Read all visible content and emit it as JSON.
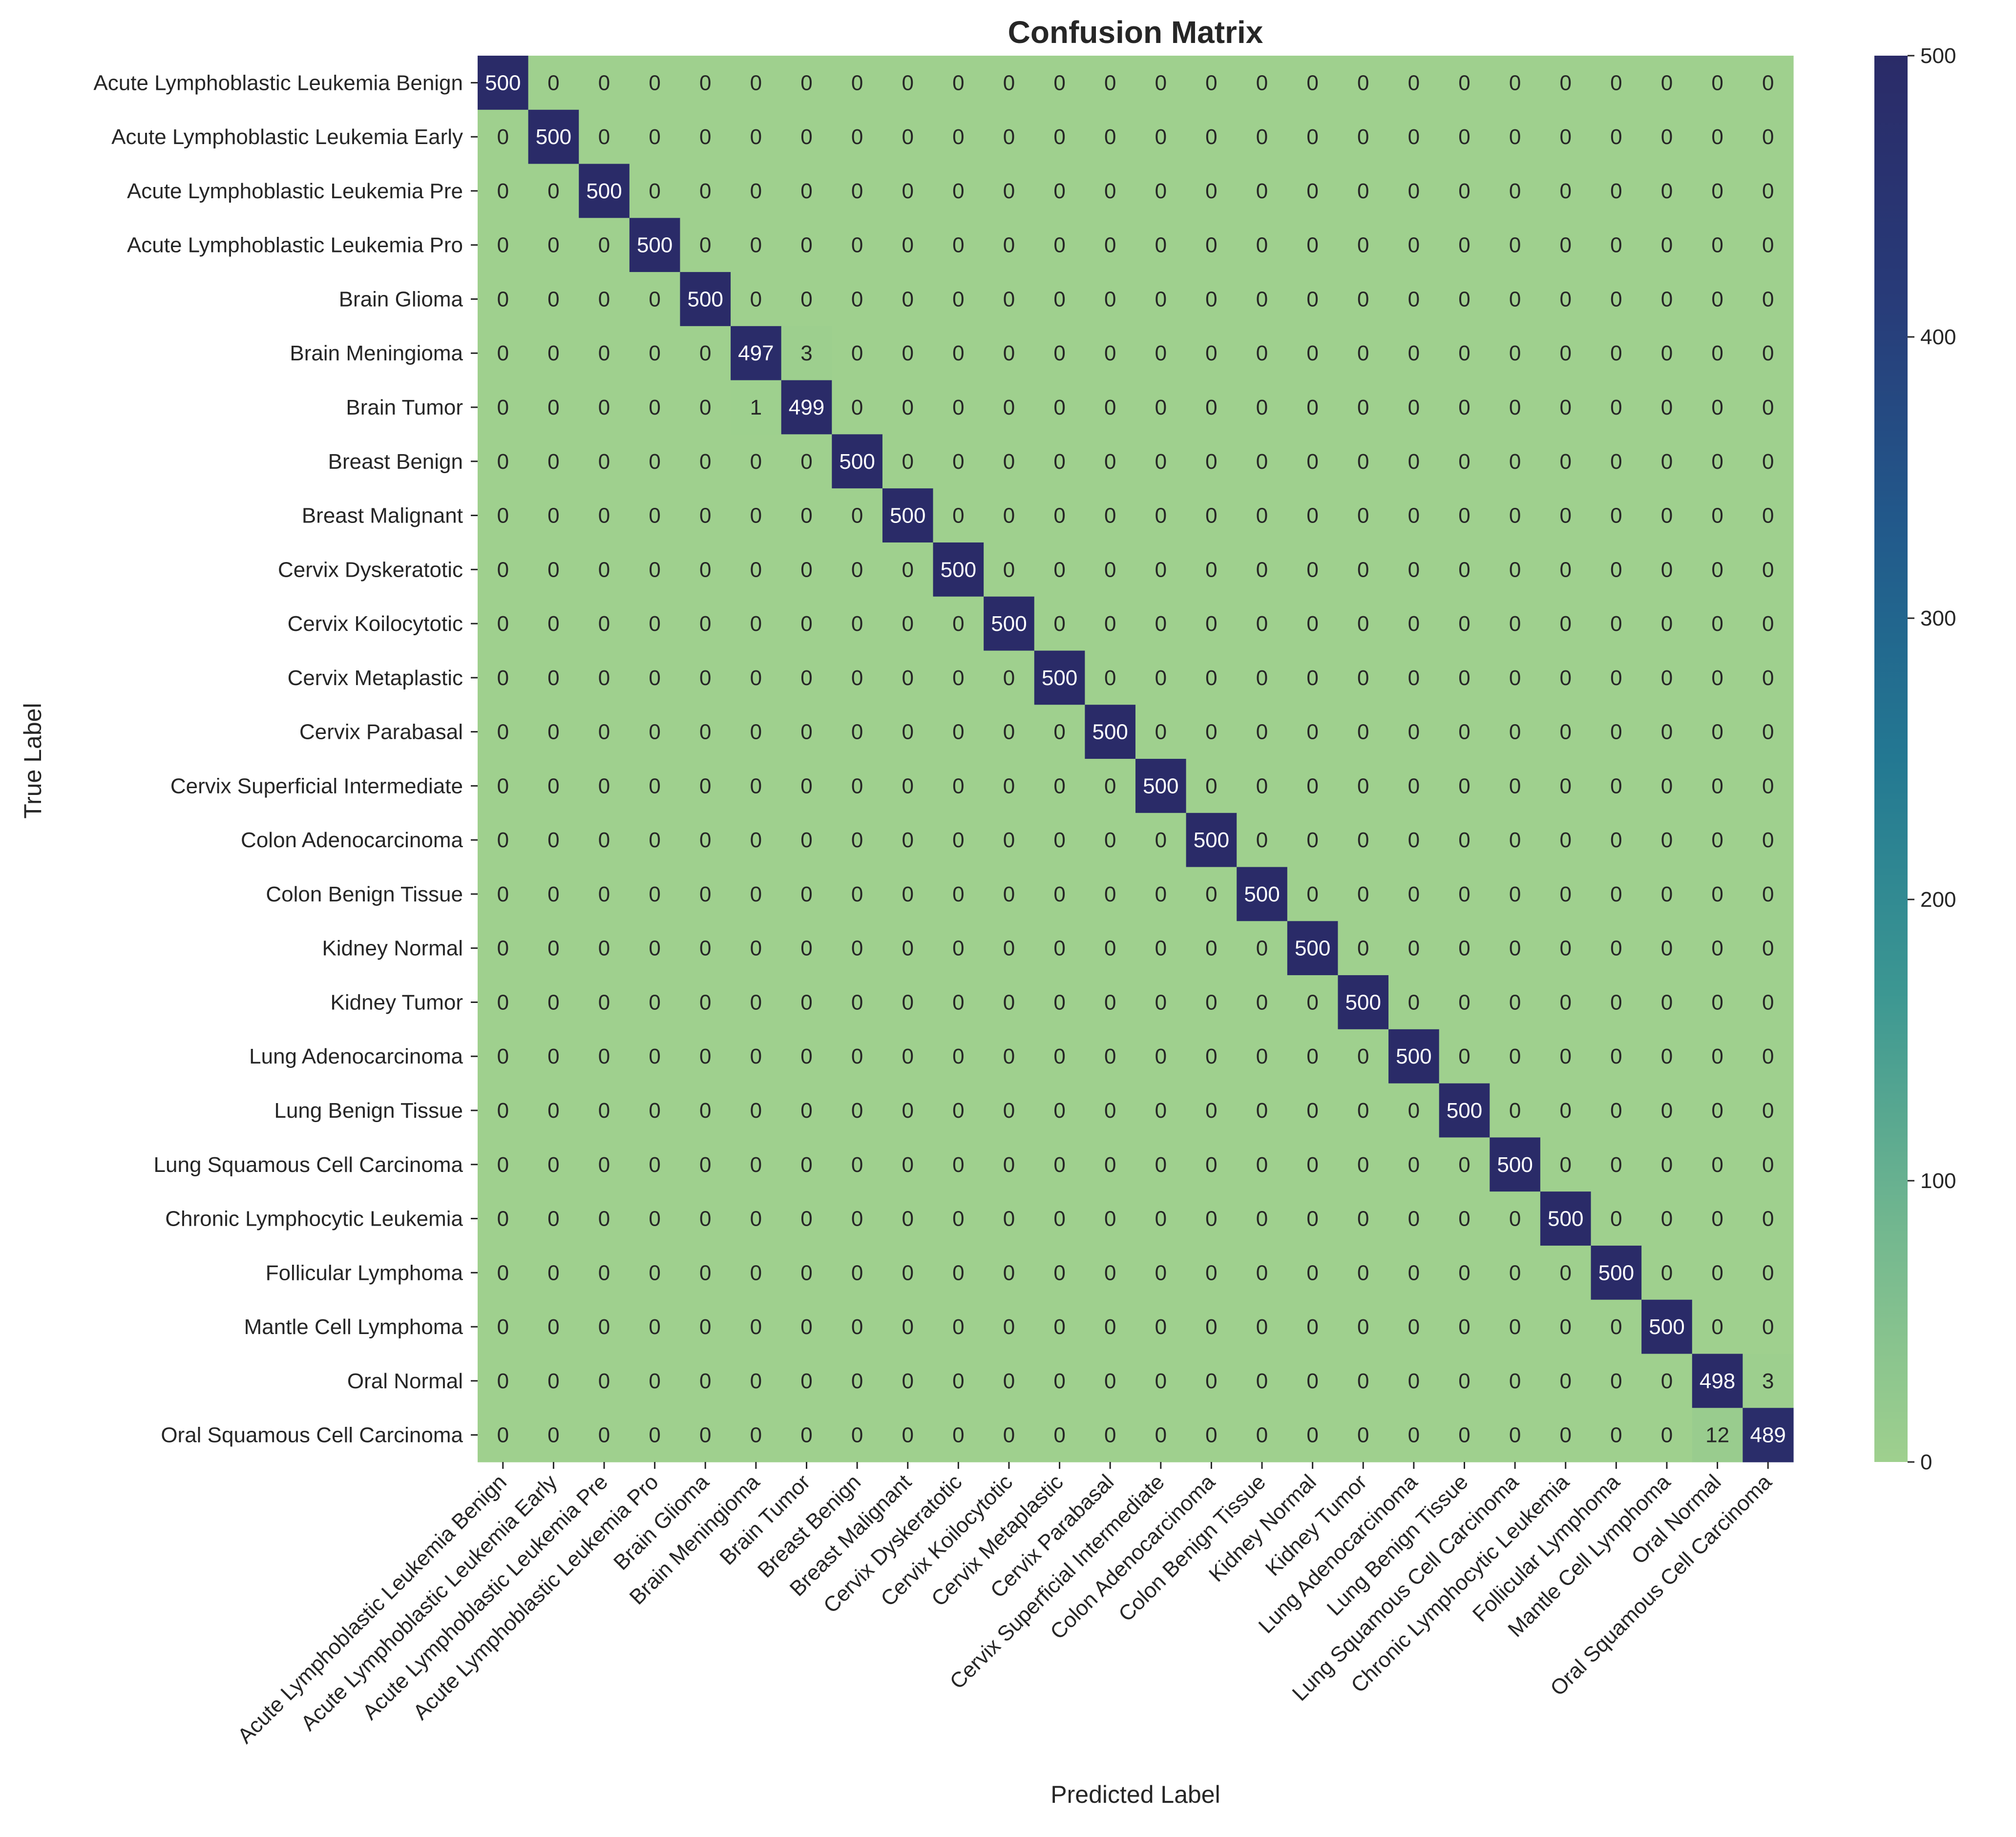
{
  "chart_data": {
    "type": "heatmap",
    "title": "Confusion Matrix",
    "xlabel": "Predicted Label",
    "ylabel": "True Label",
    "categories": [
      "Acute Lymphoblastic Leukemia Benign",
      "Acute Lymphoblastic Leukemia Early",
      "Acute Lymphoblastic Leukemia Pre",
      "Acute Lymphoblastic Leukemia Pro",
      "Brain Glioma",
      "Brain Meningioma",
      "Brain Tumor",
      "Breast Benign",
      "Breast Malignant",
      "Cervix Dyskeratotic",
      "Cervix Koilocytotic",
      "Cervix Metaplastic",
      "Cervix Parabasal",
      "Cervix Superficial Intermediate",
      "Colon Adenocarcinoma",
      "Colon Benign Tissue",
      "Kidney Normal",
      "Kidney Tumor",
      "Lung Adenocarcinoma",
      "Lung Benign Tissue",
      "Lung Squamous Cell Carcinoma",
      "Chronic Lymphocytic Leukemia",
      "Follicular Lymphoma",
      "Mantle Cell Lymphoma",
      "Oral Normal",
      "Oral Squamous Cell Carcinoma"
    ],
    "matrix": [
      [
        500,
        0,
        0,
        0,
        0,
        0,
        0,
        0,
        0,
        0,
        0,
        0,
        0,
        0,
        0,
        0,
        0,
        0,
        0,
        0,
        0,
        0,
        0,
        0,
        0,
        0
      ],
      [
        0,
        500,
        0,
        0,
        0,
        0,
        0,
        0,
        0,
        0,
        0,
        0,
        0,
        0,
        0,
        0,
        0,
        0,
        0,
        0,
        0,
        0,
        0,
        0,
        0,
        0
      ],
      [
        0,
        0,
        500,
        0,
        0,
        0,
        0,
        0,
        0,
        0,
        0,
        0,
        0,
        0,
        0,
        0,
        0,
        0,
        0,
        0,
        0,
        0,
        0,
        0,
        0,
        0
      ],
      [
        0,
        0,
        0,
        500,
        0,
        0,
        0,
        0,
        0,
        0,
        0,
        0,
        0,
        0,
        0,
        0,
        0,
        0,
        0,
        0,
        0,
        0,
        0,
        0,
        0,
        0
      ],
      [
        0,
        0,
        0,
        0,
        500,
        0,
        0,
        0,
        0,
        0,
        0,
        0,
        0,
        0,
        0,
        0,
        0,
        0,
        0,
        0,
        0,
        0,
        0,
        0,
        0,
        0
      ],
      [
        0,
        0,
        0,
        0,
        0,
        497,
        3,
        0,
        0,
        0,
        0,
        0,
        0,
        0,
        0,
        0,
        0,
        0,
        0,
        0,
        0,
        0,
        0,
        0,
        0,
        0
      ],
      [
        0,
        0,
        0,
        0,
        0,
        1,
        499,
        0,
        0,
        0,
        0,
        0,
        0,
        0,
        0,
        0,
        0,
        0,
        0,
        0,
        0,
        0,
        0,
        0,
        0,
        0
      ],
      [
        0,
        0,
        0,
        0,
        0,
        0,
        0,
        500,
        0,
        0,
        0,
        0,
        0,
        0,
        0,
        0,
        0,
        0,
        0,
        0,
        0,
        0,
        0,
        0,
        0,
        0
      ],
      [
        0,
        0,
        0,
        0,
        0,
        0,
        0,
        0,
        500,
        0,
        0,
        0,
        0,
        0,
        0,
        0,
        0,
        0,
        0,
        0,
        0,
        0,
        0,
        0,
        0,
        0
      ],
      [
        0,
        0,
        0,
        0,
        0,
        0,
        0,
        0,
        0,
        500,
        0,
        0,
        0,
        0,
        0,
        0,
        0,
        0,
        0,
        0,
        0,
        0,
        0,
        0,
        0,
        0
      ],
      [
        0,
        0,
        0,
        0,
        0,
        0,
        0,
        0,
        0,
        0,
        500,
        0,
        0,
        0,
        0,
        0,
        0,
        0,
        0,
        0,
        0,
        0,
        0,
        0,
        0,
        0
      ],
      [
        0,
        0,
        0,
        0,
        0,
        0,
        0,
        0,
        0,
        0,
        0,
        500,
        0,
        0,
        0,
        0,
        0,
        0,
        0,
        0,
        0,
        0,
        0,
        0,
        0,
        0
      ],
      [
        0,
        0,
        0,
        0,
        0,
        0,
        0,
        0,
        0,
        0,
        0,
        0,
        500,
        0,
        0,
        0,
        0,
        0,
        0,
        0,
        0,
        0,
        0,
        0,
        0,
        0
      ],
      [
        0,
        0,
        0,
        0,
        0,
        0,
        0,
        0,
        0,
        0,
        0,
        0,
        0,
        500,
        0,
        0,
        0,
        0,
        0,
        0,
        0,
        0,
        0,
        0,
        0,
        0
      ],
      [
        0,
        0,
        0,
        0,
        0,
        0,
        0,
        0,
        0,
        0,
        0,
        0,
        0,
        0,
        500,
        0,
        0,
        0,
        0,
        0,
        0,
        0,
        0,
        0,
        0,
        0
      ],
      [
        0,
        0,
        0,
        0,
        0,
        0,
        0,
        0,
        0,
        0,
        0,
        0,
        0,
        0,
        0,
        500,
        0,
        0,
        0,
        0,
        0,
        0,
        0,
        0,
        0,
        0
      ],
      [
        0,
        0,
        0,
        0,
        0,
        0,
        0,
        0,
        0,
        0,
        0,
        0,
        0,
        0,
        0,
        0,
        500,
        0,
        0,
        0,
        0,
        0,
        0,
        0,
        0,
        0
      ],
      [
        0,
        0,
        0,
        0,
        0,
        0,
        0,
        0,
        0,
        0,
        0,
        0,
        0,
        0,
        0,
        0,
        0,
        500,
        0,
        0,
        0,
        0,
        0,
        0,
        0,
        0
      ],
      [
        0,
        0,
        0,
        0,
        0,
        0,
        0,
        0,
        0,
        0,
        0,
        0,
        0,
        0,
        0,
        0,
        0,
        0,
        500,
        0,
        0,
        0,
        0,
        0,
        0,
        0
      ],
      [
        0,
        0,
        0,
        0,
        0,
        0,
        0,
        0,
        0,
        0,
        0,
        0,
        0,
        0,
        0,
        0,
        0,
        0,
        0,
        500,
        0,
        0,
        0,
        0,
        0,
        0
      ],
      [
        0,
        0,
        0,
        0,
        0,
        0,
        0,
        0,
        0,
        0,
        0,
        0,
        0,
        0,
        0,
        0,
        0,
        0,
        0,
        0,
        500,
        0,
        0,
        0,
        0,
        0
      ],
      [
        0,
        0,
        0,
        0,
        0,
        0,
        0,
        0,
        0,
        0,
        0,
        0,
        0,
        0,
        0,
        0,
        0,
        0,
        0,
        0,
        0,
        500,
        0,
        0,
        0,
        0
      ],
      [
        0,
        0,
        0,
        0,
        0,
        0,
        0,
        0,
        0,
        0,
        0,
        0,
        0,
        0,
        0,
        0,
        0,
        0,
        0,
        0,
        0,
        0,
        500,
        0,
        0,
        0
      ],
      [
        0,
        0,
        0,
        0,
        0,
        0,
        0,
        0,
        0,
        0,
        0,
        0,
        0,
        0,
        0,
        0,
        0,
        0,
        0,
        0,
        0,
        0,
        0,
        500,
        0,
        0
      ],
      [
        0,
        0,
        0,
        0,
        0,
        0,
        0,
        0,
        0,
        0,
        0,
        0,
        0,
        0,
        0,
        0,
        0,
        0,
        0,
        0,
        0,
        0,
        0,
        0,
        498,
        3
      ],
      [
        0,
        0,
        0,
        0,
        0,
        0,
        0,
        0,
        0,
        0,
        0,
        0,
        0,
        0,
        0,
        0,
        0,
        0,
        0,
        0,
        0,
        0,
        0,
        0,
        12,
        489
      ]
    ],
    "colorbar": {
      "range": [
        0,
        500
      ],
      "ticks": [
        0,
        100,
        200,
        300,
        400,
        500
      ],
      "colormap": "crest",
      "stops": [
        "#9fd08e",
        "#72b78f",
        "#3c9792",
        "#237892",
        "#22598b",
        "#283a78",
        "#2a2b68"
      ]
    },
    "annotate": true,
    "grid": false,
    "legend": "colorbar-right"
  }
}
